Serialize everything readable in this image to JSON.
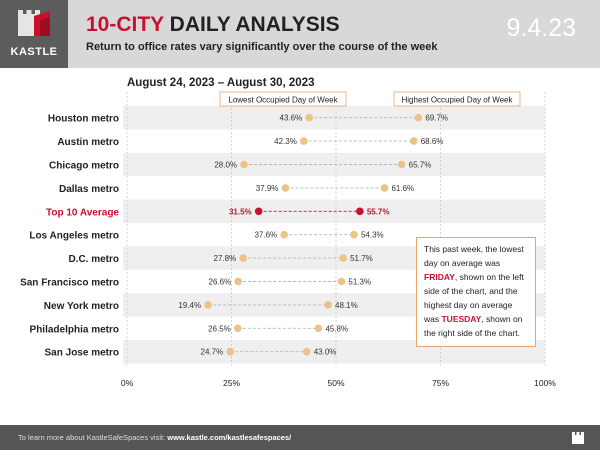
{
  "header": {
    "brand": "KASTLE",
    "title_accent": "10-CITY",
    "title_rest": " DAILY ANALYSIS",
    "subtitle": "Return to office rates vary significantly over the course of the week",
    "date": "9.4.23"
  },
  "period": "August 24, 2023 – August 30, 2023",
  "note": {
    "part1": "This past week, the lowest day on average was ",
    "low_day": "FRIDAY",
    "part2": ", shown on the left side of the chart, and the highest day on average was ",
    "high_day": "TUESDAY",
    "part3": ", shown on the right side of the chart."
  },
  "footer": {
    "text": "To learn more about KastleSafeSpaces visit: ",
    "link": "www.kastle.com/kastlesafespaces/"
  },
  "colors": {
    "accent": "#c8102e",
    "dot": "#ecc28a",
    "band": "#efefef",
    "header_bg": "#d8d8d8"
  },
  "chart_data": {
    "type": "dumbbell",
    "title": "10-CITY DAILY ANALYSIS",
    "legend": {
      "low": "Lowest Occupied Day of Week",
      "high": "Highest Occupied Day of Week"
    },
    "xlim": [
      0,
      100
    ],
    "xticks": [
      0,
      25,
      50,
      75,
      100
    ],
    "xtick_labels": [
      "0%",
      "25%",
      "50%",
      "75%",
      "100%"
    ],
    "categories": [
      "Houston metro",
      "Austin metro",
      "Chicago metro",
      "Dallas metro",
      "Top 10 Average",
      "Los Angeles metro",
      "D.C. metro",
      "San Francisco metro",
      "New York metro",
      "Philadelphia metro",
      "San Jose metro"
    ],
    "low": [
      43.6,
      42.3,
      28.0,
      37.9,
      31.5,
      37.6,
      27.8,
      26.6,
      19.4,
      26.5,
      24.7
    ],
    "high": [
      69.7,
      68.6,
      65.7,
      61.6,
      55.7,
      54.3,
      51.7,
      51.3,
      48.1,
      45.8,
      43.0
    ],
    "low_labels": [
      "43.6%",
      "42.3%",
      "28.0%",
      "37.9%",
      "31.5%",
      "37.6%",
      "27.8%",
      "26.6%",
      "19.4%",
      "26.5%",
      "24.7%"
    ],
    "high_labels": [
      "69.7%",
      "68.6%",
      "65.7%",
      "61.6%",
      "55.7%",
      "54.3%",
      "51.7%",
      "51.3%",
      "48.1%",
      "45.8%",
      "43.0%"
    ],
    "highlight": "Top 10 Average"
  }
}
